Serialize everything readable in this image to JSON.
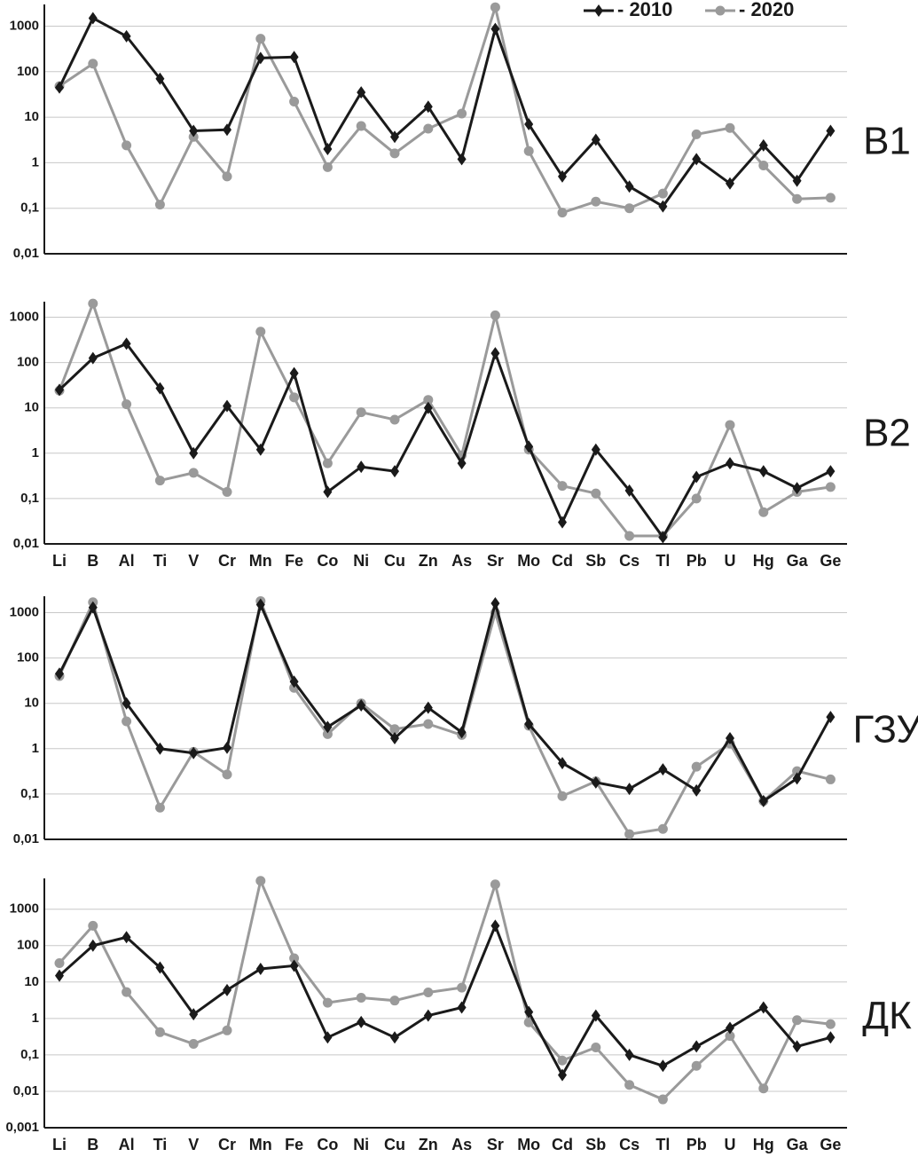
{
  "chart_data": [
    {
      "type": "line",
      "label": "В1",
      "log_scale": true,
      "grid": true,
      "legend": "top-right",
      "ylim": [
        0.01,
        3000
      ],
      "yticks": [
        {
          "value": 0.01,
          "label": "0,01"
        },
        {
          "value": 0.1,
          "label": "0,1"
        },
        1,
        10,
        100,
        1000
      ],
      "series": [
        {
          "name": "- 2010",
          "color": "#1a1a1a",
          "marker": "diamond",
          "values": [
            45,
            1500,
            600,
            70,
            5,
            5.3,
            200,
            210,
            2,
            35,
            3.7,
            17,
            1.2,
            870,
            7,
            0.5,
            3.2,
            0.3,
            0.11,
            1.2,
            0.35,
            2.4,
            0.4,
            5
          ]
        },
        {
          "name": "- 2020",
          "color": "#9a9a9a",
          "marker": "circle",
          "values": [
            48,
            150,
            2.4,
            0.12,
            3.7,
            0.5,
            530,
            22,
            0.8,
            6.4,
            1.6,
            5.6,
            12,
            2600,
            1.8,
            0.08,
            0.14,
            0.1,
            0.21,
            4.2,
            5.8,
            0.87,
            0.16,
            0.17
          ]
        }
      ]
    },
    {
      "type": "line",
      "label": "В2",
      "log_scale": true,
      "grid": true,
      "categories": [
        "Li",
        "B",
        "Al",
        "Ti",
        "V",
        "Cr",
        "Mn",
        "Fe",
        "Co",
        "Ni",
        "Cu",
        "Zn",
        "As",
        "Sr",
        "Mo",
        "Cd",
        "Sb",
        "Cs",
        "Tl",
        "Pb",
        "U",
        "Hg",
        "Ga",
        "Ge"
      ],
      "ylim": [
        0.01,
        2200
      ],
      "yticks": [
        {
          "value": 0.01,
          "label": "0,01"
        },
        {
          "value": 0.1,
          "label": "0,1"
        },
        1,
        10,
        100,
        1000
      ],
      "series": [
        {
          "color": "#1a1a1a",
          "marker": "diamond",
          "values": [
            25,
            125,
            260,
            27,
            1,
            11,
            1.2,
            58,
            0.14,
            0.5,
            0.4,
            10,
            0.6,
            160,
            1.4,
            0.03,
            1.2,
            0.15,
            0.014,
            0.3,
            0.6,
            0.4,
            0.17,
            0.4
          ]
        },
        {
          "color": "#9a9a9a",
          "marker": "circle",
          "values": [
            24,
            2000,
            12,
            0.25,
            0.37,
            0.14,
            480,
            17,
            0.6,
            8,
            5.5,
            15,
            0.9,
            1100,
            1.2,
            0.19,
            0.13,
            0.015,
            0.015,
            0.1,
            4.2,
            0.05,
            0.14,
            0.18
          ]
        }
      ]
    },
    {
      "type": "line",
      "label": "ГЗУ",
      "log_scale": true,
      "grid": true,
      "ylim": [
        0.01,
        2300
      ],
      "yticks": [
        {
          "value": 0.01,
          "label": "0,01"
        },
        {
          "value": 0.1,
          "label": "0,1"
        },
        1,
        10,
        100,
        1000
      ],
      "series": [
        {
          "color": "#1a1a1a",
          "marker": "diamond",
          "values": [
            45,
            1300,
            10,
            1,
            0.8,
            1.05,
            1500,
            30,
            3,
            9,
            1.7,
            8,
            2.3,
            1600,
            3.5,
            0.48,
            0.18,
            0.13,
            0.35,
            0.12,
            1.7,
            0.07,
            0.22,
            5
          ]
        },
        {
          "color": "#9a9a9a",
          "marker": "circle",
          "values": [
            40,
            1700,
            4,
            0.05,
            0.85,
            0.27,
            1800,
            22,
            2.1,
            10,
            2.7,
            3.5,
            2,
            1000,
            3.2,
            0.09,
            0.19,
            0.013,
            0.017,
            0.4,
            1.3,
            0.07,
            0.32,
            0.21
          ]
        }
      ]
    },
    {
      "type": "line",
      "label": "ДК",
      "log_scale": true,
      "grid": true,
      "categories": [
        "Li",
        "B",
        "Al",
        "Ti",
        "V",
        "Cr",
        "Mn",
        "Fe",
        "Co",
        "Ni",
        "Cu",
        "Zn",
        "As",
        "Sr",
        "Mo",
        "Cd",
        "Sb",
        "Cs",
        "Tl",
        "Pb",
        "U",
        "Hg",
        "Ga",
        "Ge"
      ],
      "ylim": [
        0.001,
        7000
      ],
      "yticks": [
        {
          "value": 0.001,
          "label": "0,001"
        },
        {
          "value": 0.01,
          "label": "0,01"
        },
        {
          "value": 0.1,
          "label": "0,1"
        },
        1,
        10,
        100,
        1000
      ],
      "series": [
        {
          "color": "#1a1a1a",
          "marker": "diamond",
          "values": [
            15,
            100,
            170,
            25,
            1.3,
            6,
            23,
            28,
            0.3,
            0.8,
            0.3,
            1.2,
            2,
            350,
            1.5,
            0.028,
            1.2,
            0.1,
            0.05,
            0.17,
            0.55,
            2,
            0.17,
            0.3
          ]
        },
        {
          "color": "#9a9a9a",
          "marker": "circle",
          "values": [
            33,
            350,
            5.3,
            0.42,
            0.2,
            0.47,
            6000,
            45,
            2.7,
            3.7,
            3.1,
            5.2,
            7,
            4800,
            0.78,
            0.07,
            0.16,
            0.015,
            0.006,
            0.05,
            0.33,
            0.012,
            0.9,
            0.7
          ]
        }
      ]
    }
  ]
}
